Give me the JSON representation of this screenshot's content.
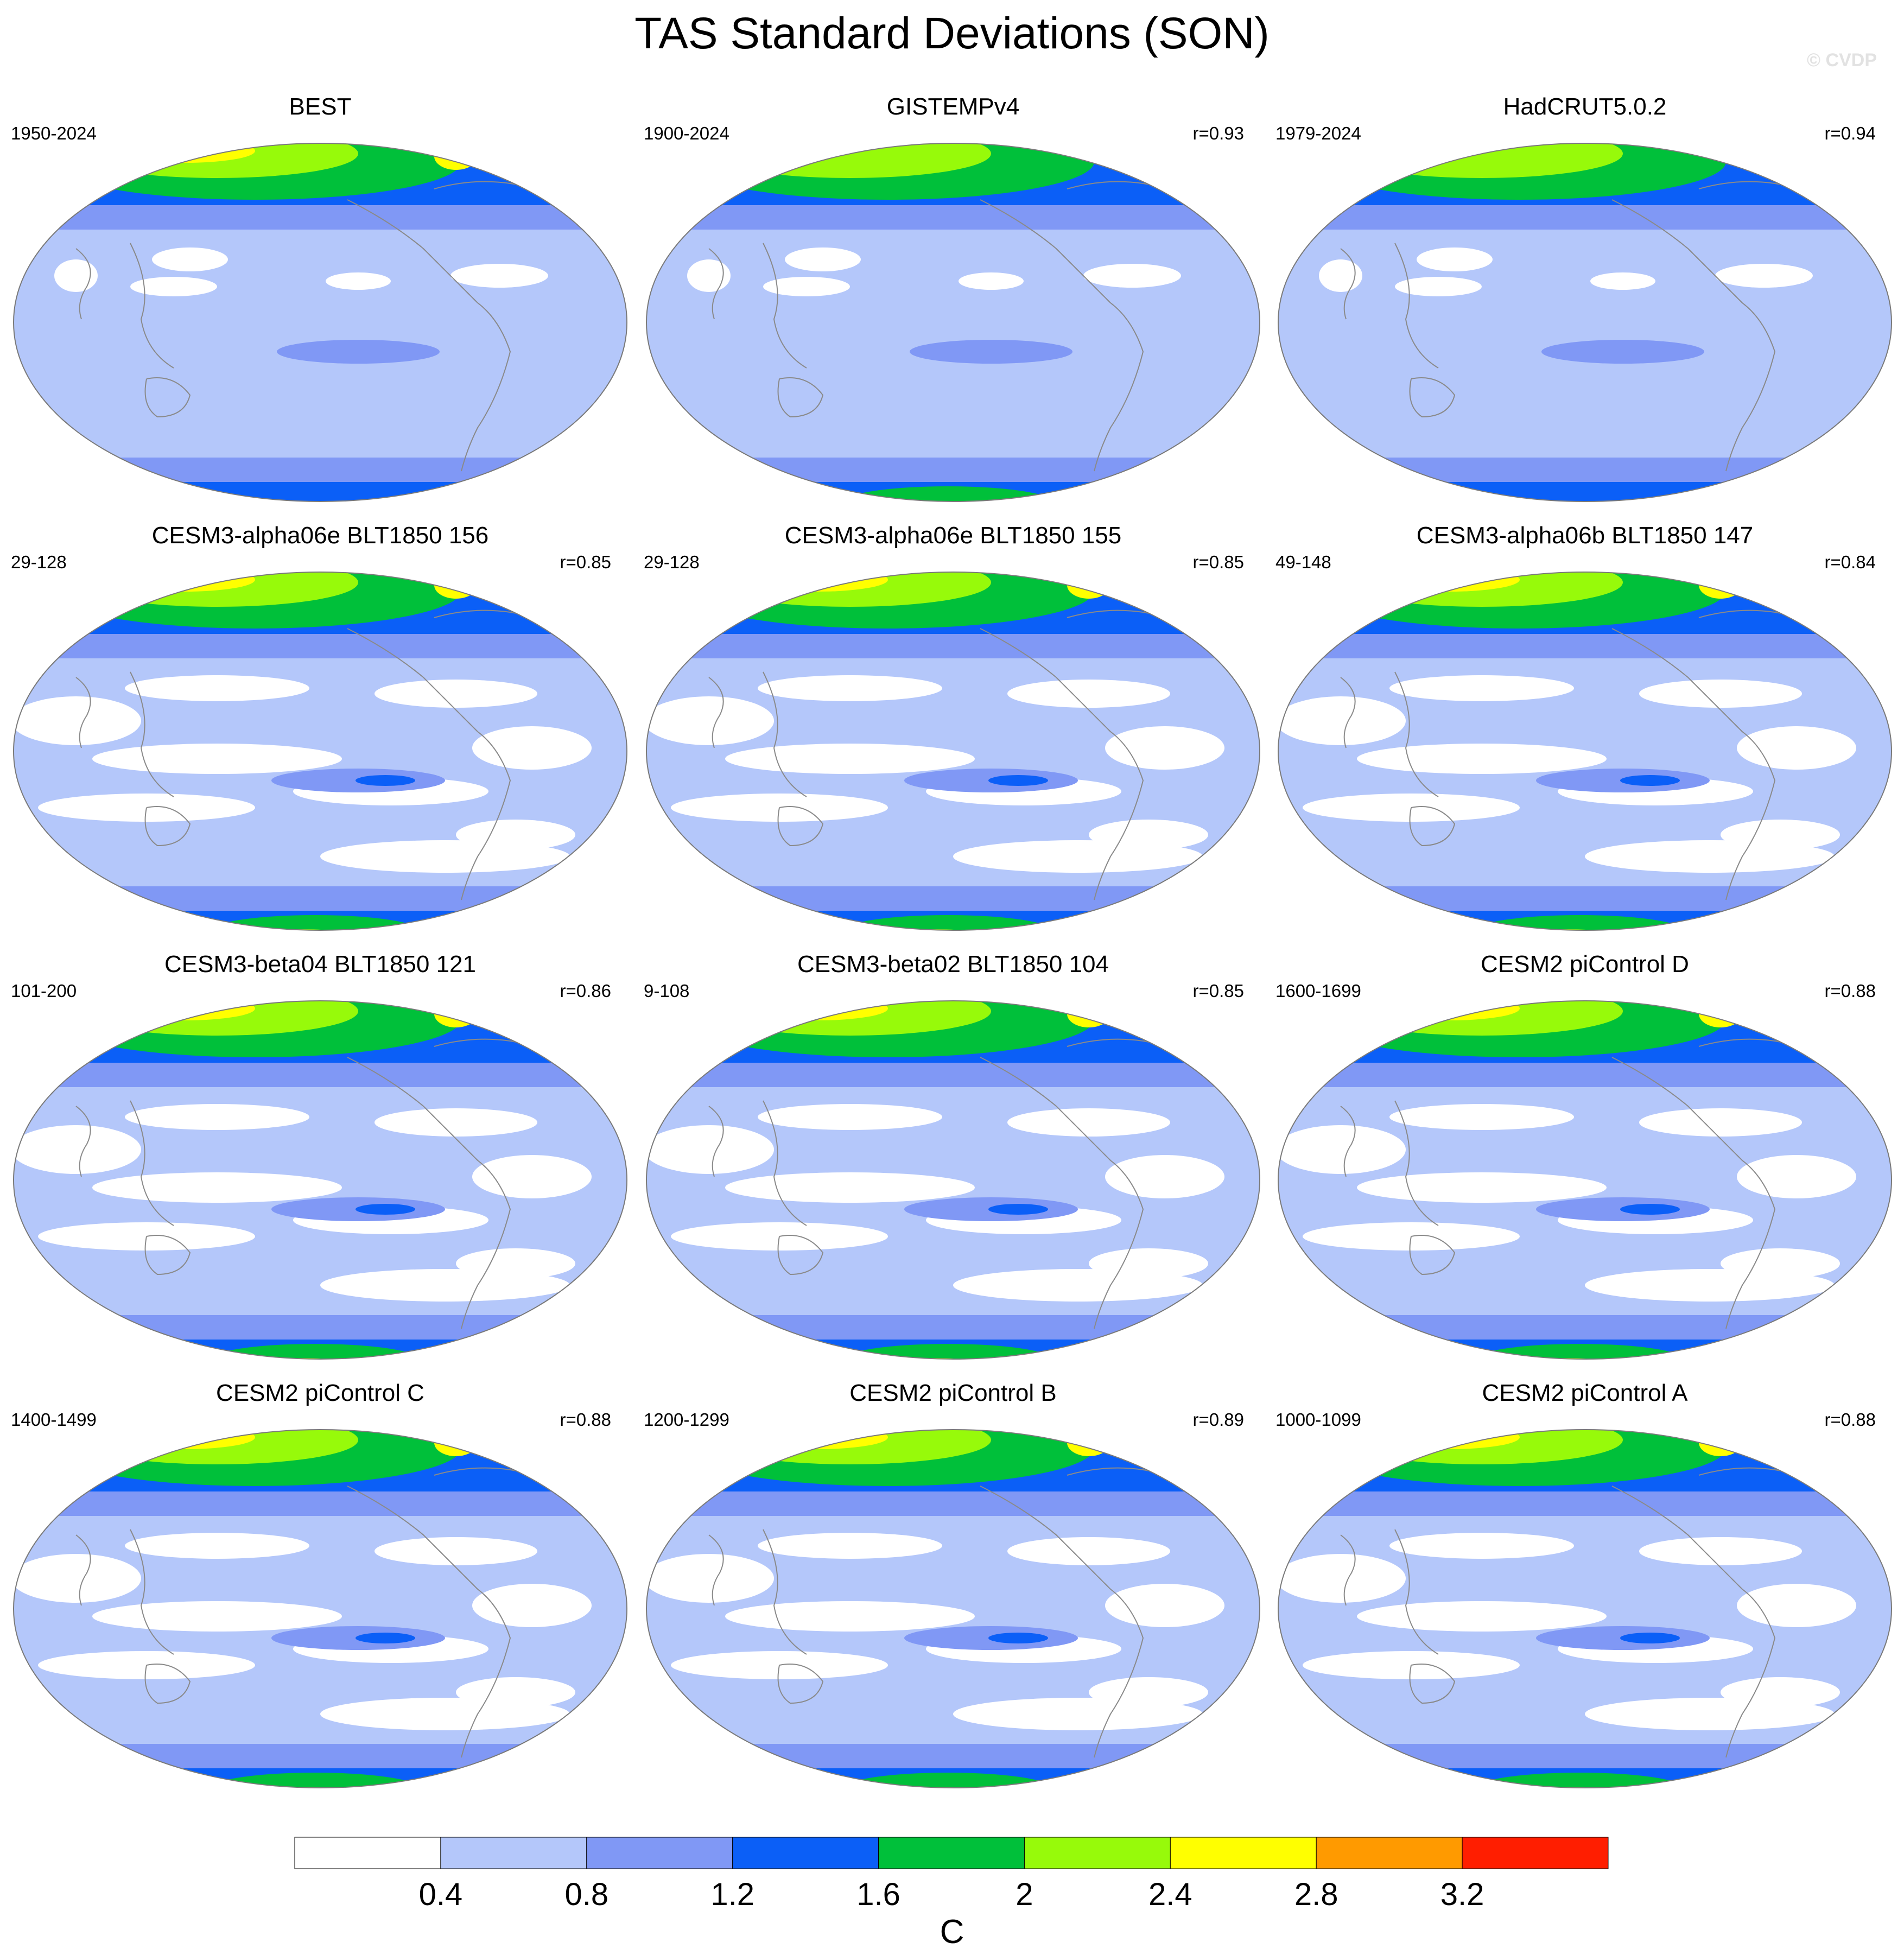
{
  "title": "TAS Standard Deviations (SON)",
  "watermark": "© CVDP",
  "panels": [
    {
      "title": "BEST",
      "period": "1950-2024",
      "r": ""
    },
    {
      "title": "GISTEMPv4",
      "period": "1900-2024",
      "r": "r=0.93"
    },
    {
      "title": "HadCRUT5.0.2",
      "period": "1979-2024",
      "r": "r=0.94"
    },
    {
      "title": "CESM3-alpha06e BLT1850 156",
      "period": "29-128",
      "r": "r=0.85"
    },
    {
      "title": "CESM3-alpha06e BLT1850 155",
      "period": "29-128",
      "r": "r=0.85"
    },
    {
      "title": "CESM3-alpha06b BLT1850 147",
      "period": "49-148",
      "r": "r=0.84"
    },
    {
      "title": "CESM3-beta04 BLT1850 121",
      "period": "101-200",
      "r": "r=0.86"
    },
    {
      "title": "CESM3-beta02 BLT1850 104",
      "period": "9-108",
      "r": "r=0.85"
    },
    {
      "title": "CESM2 piControl D",
      "period": "1600-1699",
      "r": "r=0.88"
    },
    {
      "title": "CESM2 piControl C",
      "period": "1400-1499",
      "r": "r=0.88"
    },
    {
      "title": "CESM2 piControl B",
      "period": "1200-1299",
      "r": "r=0.89"
    },
    {
      "title": "CESM2 piControl A",
      "period": "1000-1099",
      "r": "r=0.88"
    }
  ],
  "colorbar": {
    "unit": "C",
    "levels": [
      "0.4",
      "0.8",
      "1.2",
      "1.6",
      "2",
      "2.4",
      "2.8",
      "3.2"
    ],
    "colors": [
      "#ffffff",
      "#b4c7fa",
      "#8098f5",
      "#0b5ff7",
      "#00c03a",
      "#97fa0a",
      "#ffff00",
      "#ff9a00",
      "#ff1e00"
    ]
  },
  "map_style": {
    "projection": "Robinson, Pacific-centered",
    "ocean_background": "#b4c7fa",
    "coastline_color": "#8a8a8a"
  }
}
